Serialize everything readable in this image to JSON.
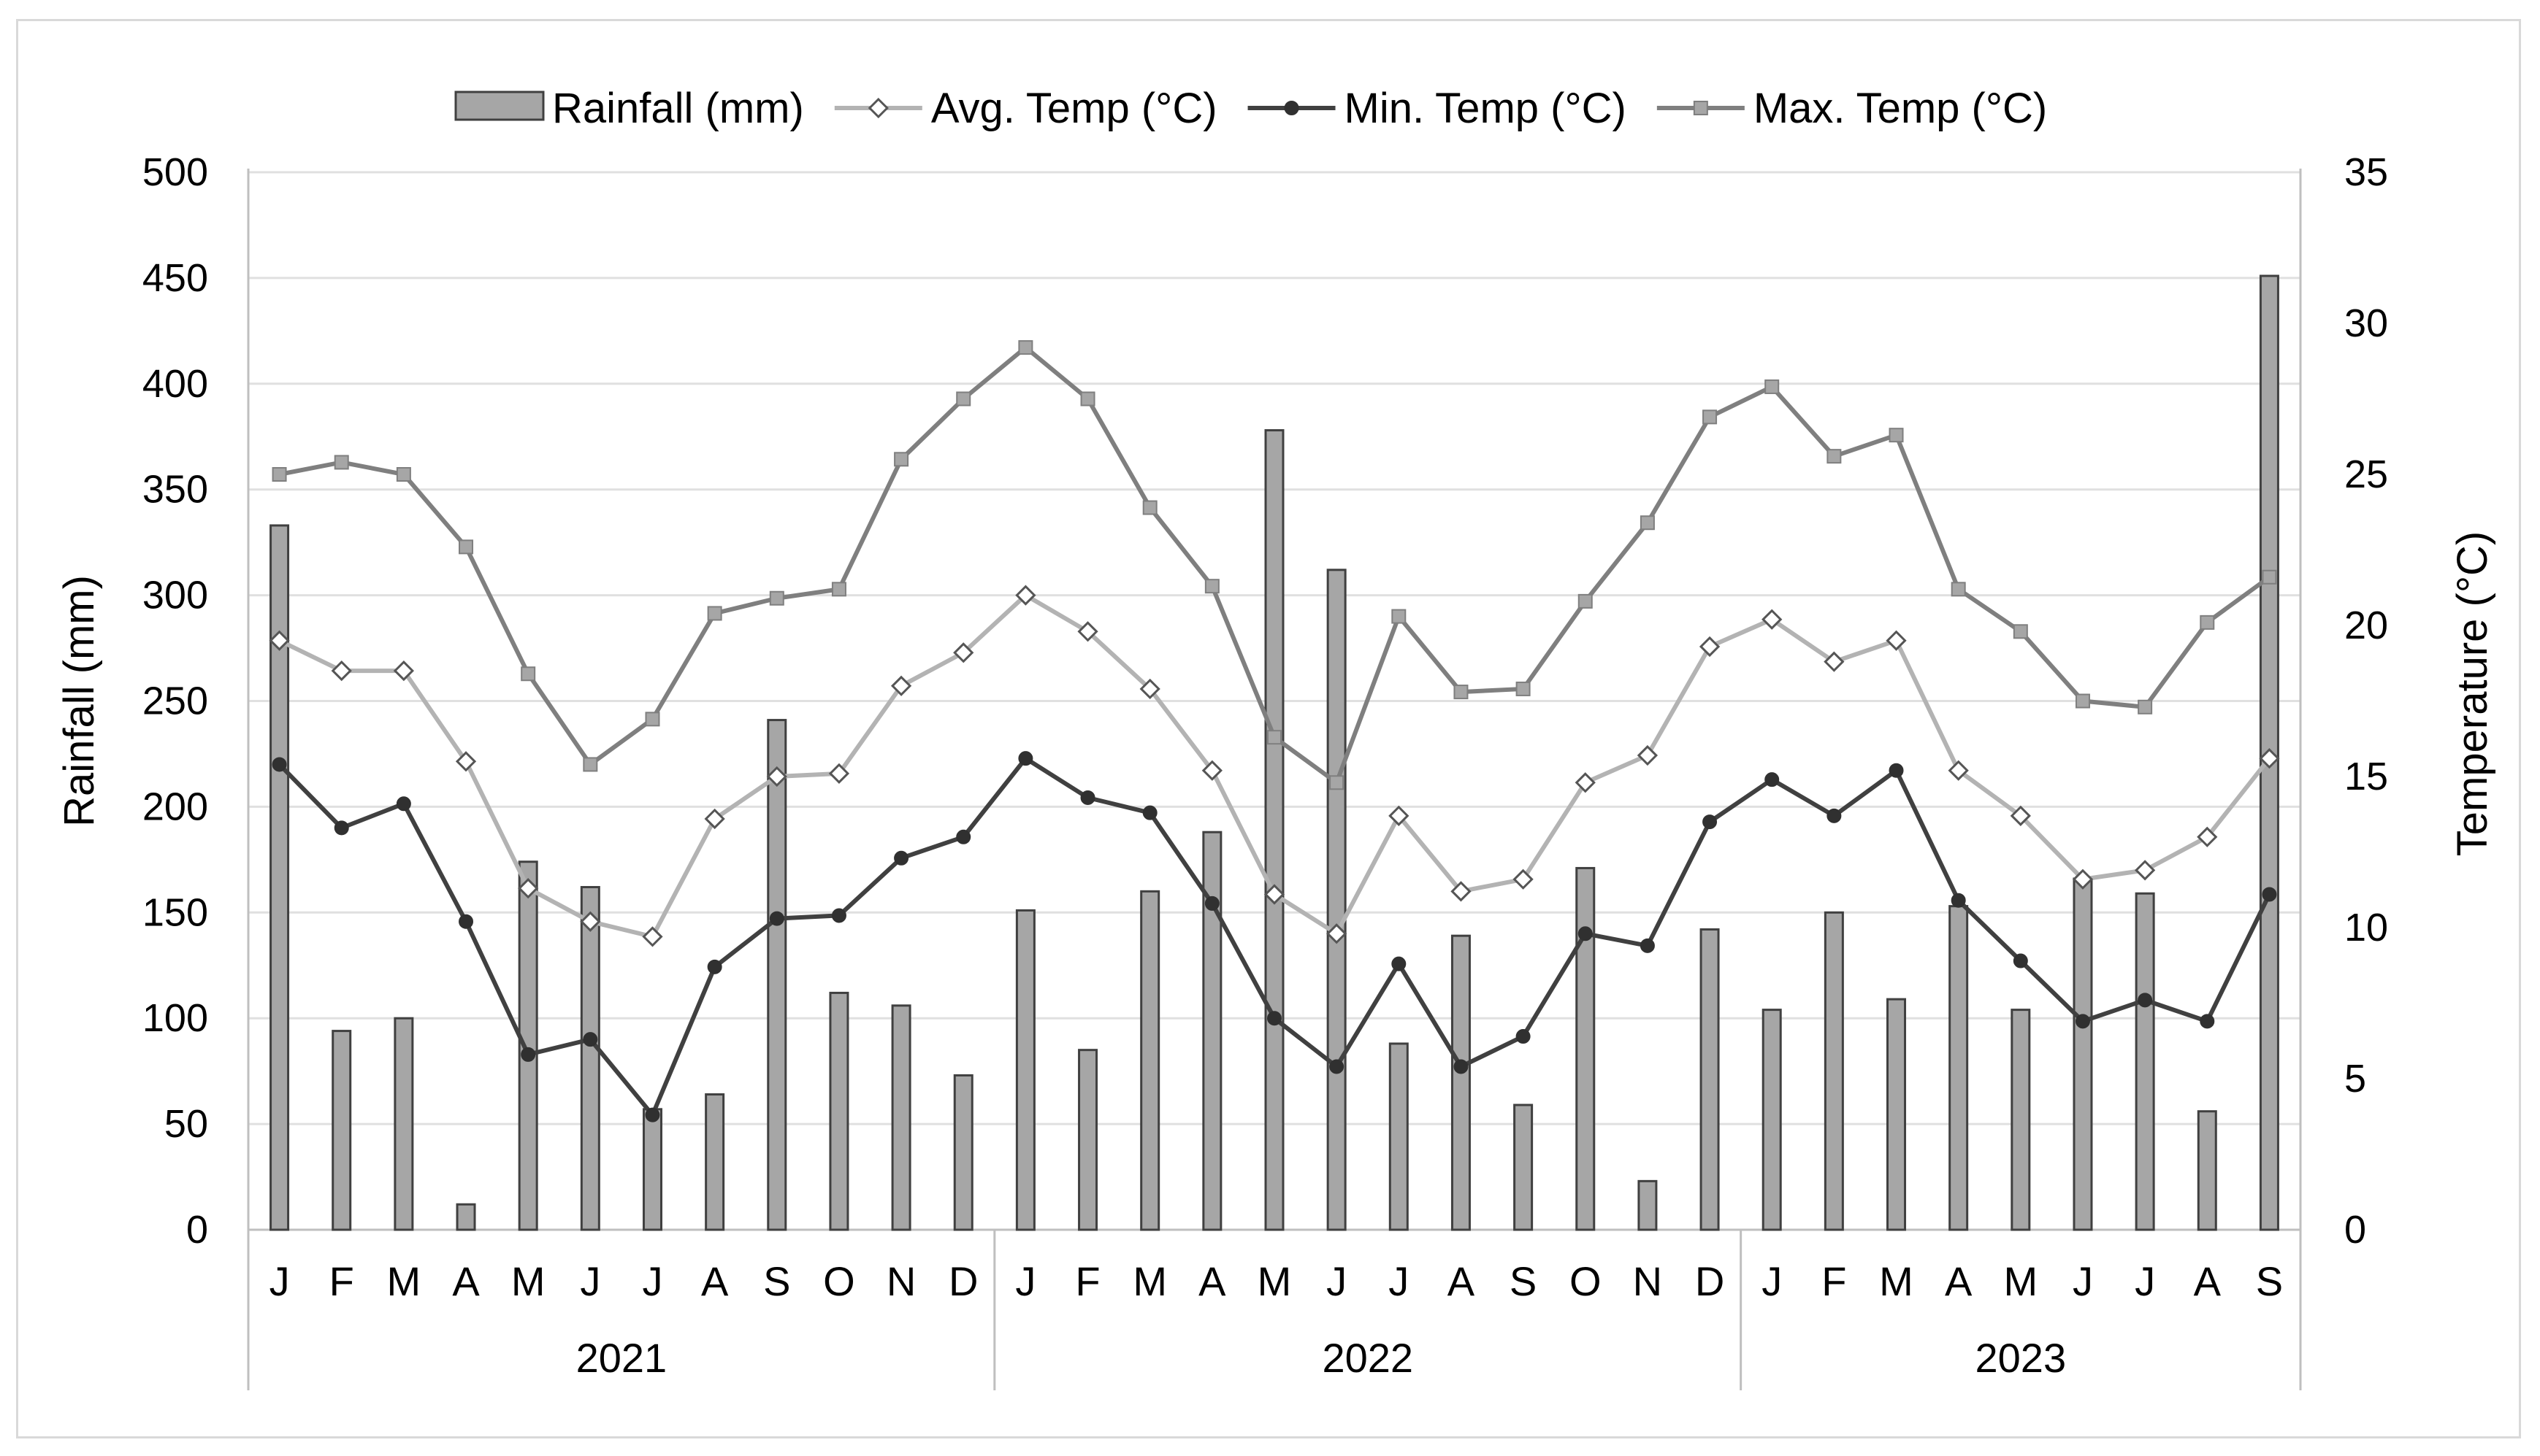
{
  "chart_data": {
    "type": "bar+line",
    "title": "",
    "categories": [
      "J",
      "F",
      "M",
      "A",
      "M",
      "J",
      "J",
      "A",
      "S",
      "O",
      "N",
      "D",
      "J",
      "F",
      "M",
      "A",
      "M",
      "J",
      "J",
      "A",
      "S",
      "O",
      "N",
      "D",
      "J",
      "F",
      "M",
      "A",
      "M",
      "J",
      "J",
      "A",
      "S"
    ],
    "year_groups": [
      {
        "label": "2021",
        "count": 12
      },
      {
        "label": "2022",
        "count": 12
      },
      {
        "label": "2023",
        "count": 9
      }
    ],
    "ylabel": "Rainfall  (mm)",
    "y2label": "Temperature (°C)",
    "ylim": [
      0,
      500
    ],
    "y2lim": [
      0,
      35
    ],
    "yticks": [
      "0",
      "50",
      "100",
      "150",
      "200",
      "250",
      "300",
      "350",
      "400",
      "450",
      "500"
    ],
    "y2ticks": [
      "0",
      "5",
      "10",
      "15",
      "20",
      "25",
      "30",
      "35"
    ],
    "gridlines": true,
    "legend_position": "top",
    "series": [
      {
        "name": "Rainfall (mm)",
        "kind": "bar",
        "axis": "left",
        "color": "#a6a6a6",
        "edge": "#404040",
        "values": [
          333,
          94,
          100,
          12,
          174,
          162,
          57,
          64,
          241,
          112,
          106,
          73,
          151,
          85,
          160,
          188,
          378,
          312,
          88,
          139,
          59,
          171,
          23,
          142,
          104,
          150,
          109,
          153,
          104,
          166,
          159,
          56,
          451
        ]
      },
      {
        "name": "Avg. Temp (°C)",
        "kind": "line",
        "axis": "right",
        "color": "#b3b3b3",
        "marker": "diamond",
        "values": [
          19.5,
          18.5,
          18.5,
          15.5,
          11.3,
          10.2,
          9.7,
          13.6,
          15.0,
          15.1,
          18.0,
          19.1,
          21.0,
          19.8,
          17.9,
          15.2,
          11.1,
          9.8,
          13.7,
          11.2,
          11.6,
          14.8,
          15.7,
          19.3,
          20.2,
          18.8,
          19.5,
          15.2,
          13.7,
          11.6,
          11.9,
          13.0,
          15.6
        ]
      },
      {
        "name": "Min. Temp (°C)",
        "kind": "line",
        "axis": "right",
        "color": "#404040",
        "marker": "circle",
        "values": [
          15.4,
          13.3,
          14.1,
          10.2,
          5.8,
          6.3,
          3.8,
          8.7,
          10.3,
          10.4,
          12.3,
          13.0,
          15.6,
          14.3,
          13.8,
          10.8,
          7.0,
          5.4,
          8.8,
          5.4,
          6.4,
          9.8,
          9.4,
          13.5,
          14.9,
          13.7,
          15.2,
          10.9,
          8.9,
          6.9,
          7.6,
          6.9,
          11.1
        ]
      },
      {
        "name": "Max. Temp (°C)",
        "kind": "line",
        "axis": "right",
        "color": "#7f7f7f",
        "marker": "square",
        "values": [
          25.0,
          25.4,
          25.0,
          22.6,
          18.4,
          15.4,
          16.9,
          20.4,
          20.9,
          21.2,
          25.5,
          27.5,
          29.2,
          27.5,
          23.9,
          21.3,
          16.3,
          14.8,
          20.3,
          17.8,
          17.9,
          20.8,
          23.4,
          26.9,
          27.9,
          25.6,
          26.3,
          21.2,
          19.8,
          17.5,
          17.3,
          20.1,
          21.6
        ]
      }
    ]
  }
}
